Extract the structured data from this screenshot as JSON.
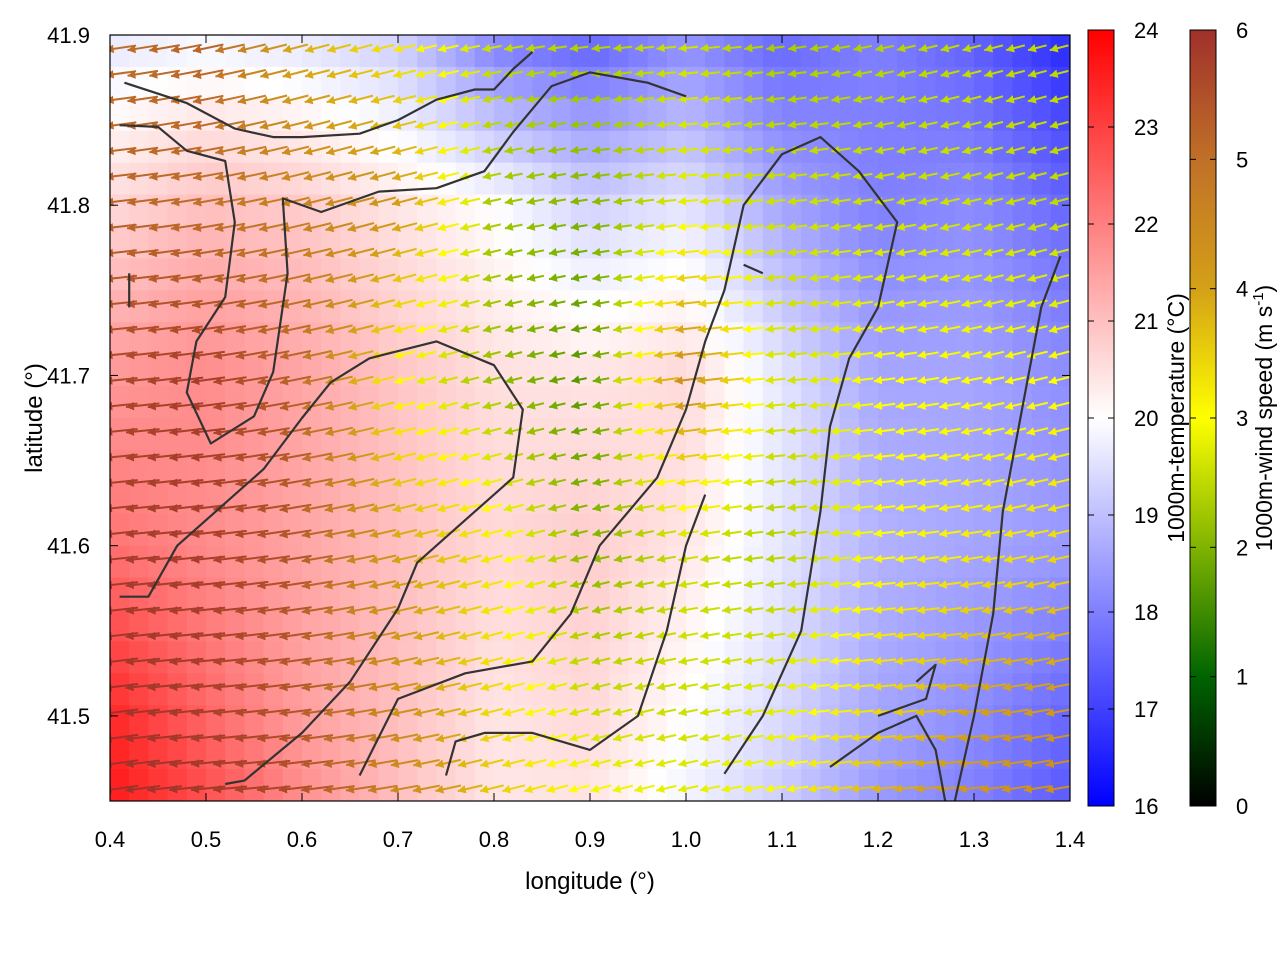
{
  "chart_data": {
    "type": "heatmap",
    "title": "",
    "xlabel": "longitude (°)",
    "ylabel": "latitude (°)",
    "xlim": [
      0.4,
      1.4
    ],
    "ylim": [
      41.45,
      41.9
    ],
    "x_ticks": [
      {
        "value": 0.4,
        "label": "0.4"
      },
      {
        "value": 0.5,
        "label": "0.5"
      },
      {
        "value": 0.6,
        "label": "0.6"
      },
      {
        "value": 0.7,
        "label": "0.7"
      },
      {
        "value": 0.8,
        "label": "0.8"
      },
      {
        "value": 0.9,
        "label": "0.9"
      },
      {
        "value": 1.0,
        "label": "1.0"
      },
      {
        "value": 1.1,
        "label": "1.1"
      },
      {
        "value": 1.2,
        "label": "1.2"
      },
      {
        "value": 1.3,
        "label": "1.3"
      },
      {
        "value": 1.4,
        "label": "1.4"
      }
    ],
    "y_ticks": [
      {
        "value": 41.5,
        "label": "41.5"
      },
      {
        "value": 41.6,
        "label": "41.6"
      },
      {
        "value": 41.7,
        "label": "41.7"
      },
      {
        "value": 41.8,
        "label": "41.8"
      },
      {
        "value": 41.9,
        "label": "41.9"
      }
    ],
    "temperature": {
      "label": "1000m-temperature (°C)",
      "range": [
        16,
        24
      ],
      "ticks": [
        {
          "value": 16,
          "label": "16"
        },
        {
          "value": 17,
          "label": "17"
        },
        {
          "value": 18,
          "label": "18"
        },
        {
          "value": 19,
          "label": "19"
        },
        {
          "value": 20,
          "label": "20"
        },
        {
          "value": 21,
          "label": "21"
        },
        {
          "value": 22,
          "label": "22"
        },
        {
          "value": 23,
          "label": "23"
        },
        {
          "value": 24,
          "label": "24"
        }
      ],
      "colormap": [
        "#0000ff",
        "#ffffff",
        "#ff0000"
      ],
      "field_lon": [
        0.4,
        0.5,
        0.6,
        0.7,
        0.8,
        0.9,
        1.0,
        1.1,
        1.2,
        1.3,
        1.4
      ],
      "field_lat": [
        41.9,
        41.8,
        41.7,
        41.6,
        41.5,
        41.45
      ],
      "field_values": [
        [
          19.6,
          19.8,
          19.6,
          19.2,
          18.0,
          17.5,
          18.2,
          17.6,
          18.0,
          17.5,
          16.6
        ],
        [
          20.6,
          21.0,
          20.8,
          20.4,
          20.0,
          19.3,
          19.6,
          18.6,
          18.0,
          18.2,
          17.6
        ],
        [
          21.6,
          21.8,
          21.4,
          20.9,
          20.5,
          20.4,
          20.6,
          19.6,
          18.6,
          18.6,
          18.2
        ],
        [
          22.2,
          21.8,
          21.4,
          21.0,
          20.6,
          20.8,
          20.4,
          19.6,
          18.8,
          18.6,
          18.4
        ],
        [
          23.4,
          22.4,
          21.5,
          21.0,
          20.4,
          20.6,
          20.0,
          19.4,
          18.6,
          18.2,
          17.6
        ],
        [
          23.6,
          22.8,
          21.8,
          21.0,
          20.4,
          20.4,
          19.8,
          19.2,
          18.4,
          18.0,
          17.4
        ]
      ]
    },
    "wind_speed": {
      "label": "1000m-wind speed (m s",
      "label_sup": "-1",
      "label_end": ")",
      "range": [
        0,
        6
      ],
      "ticks": [
        {
          "value": 0,
          "label": "0"
        },
        {
          "value": 1,
          "label": "1"
        },
        {
          "value": 2,
          "label": "2"
        },
        {
          "value": 3,
          "label": "3"
        },
        {
          "value": 4,
          "label": "4"
        },
        {
          "value": 5,
          "label": "5"
        },
        {
          "value": 6,
          "label": "6"
        }
      ],
      "colormap": [
        "#000000",
        "#006400",
        "#7fb300",
        "#ffff00",
        "#d4a017",
        "#c07028",
        "#a0302a"
      ],
      "field_values": [
        [
          5.0,
          5.2,
          3.8,
          3.2,
          2.6,
          2.4,
          2.6,
          2.3,
          2.4,
          2.5,
          2.5
        ],
        [
          5.2,
          5.0,
          4.6,
          4.2,
          2.3,
          2.0,
          2.8,
          2.6,
          2.6,
          2.6,
          2.5
        ],
        [
          5.6,
          5.8,
          5.2,
          3.0,
          2.2,
          1.6,
          4.4,
          2.6,
          3.0,
          3.0,
          3.0
        ],
        [
          5.8,
          5.8,
          5.4,
          4.0,
          3.2,
          2.0,
          2.6,
          2.4,
          3.0,
          3.2,
          3.4
        ],
        [
          6.0,
          5.8,
          5.4,
          4.4,
          3.4,
          2.6,
          2.6,
          2.8,
          3.4,
          4.0,
          4.2
        ],
        [
          6.0,
          5.9,
          5.6,
          4.6,
          3.6,
          3.0,
          2.8,
          3.0,
          3.8,
          4.2,
          4.4
        ]
      ],
      "direction": "arrows point west (easterly wind)"
    },
    "contours": [
      [
        [
          0.415,
          41.872
        ],
        [
          0.48,
          41.86
        ],
        [
          0.53,
          41.845
        ],
        [
          0.57,
          41.84
        ],
        [
          0.6,
          41.84
        ],
        [
          0.66,
          41.842
        ],
        [
          0.7,
          41.85
        ],
        [
          0.74,
          41.862
        ],
        [
          0.78,
          41.868
        ],
        [
          0.8,
          41.868
        ],
        [
          0.82,
          41.88
        ],
        [
          0.84,
          41.89
        ]
      ],
      [
        [
          0.41,
          41.847
        ],
        [
          0.45,
          41.846
        ],
        [
          0.48,
          41.832
        ],
        [
          0.52,
          41.826
        ],
        [
          0.53,
          41.79
        ],
        [
          0.52,
          41.746
        ],
        [
          0.49,
          41.72
        ],
        [
          0.48,
          41.69
        ],
        [
          0.505,
          41.66
        ],
        [
          0.55,
          41.676
        ],
        [
          0.57,
          41.702
        ],
        [
          0.585,
          41.76
        ],
        [
          0.58,
          41.804
        ],
        [
          0.62,
          41.796
        ],
        [
          0.68,
          41.808
        ],
        [
          0.74,
          41.81
        ],
        [
          0.79,
          41.82
        ],
        [
          0.82,
          41.843
        ],
        [
          0.86,
          41.87
        ],
        [
          0.9,
          41.878
        ],
        [
          0.96,
          41.872
        ],
        [
          1.0,
          41.864
        ]
      ],
      [
        [
          0.41,
          41.57
        ],
        [
          0.44,
          41.57
        ],
        [
          0.47,
          41.6
        ],
        [
          0.52,
          41.625
        ],
        [
          0.56,
          41.645
        ],
        [
          0.6,
          41.675
        ],
        [
          0.63,
          41.696
        ],
        [
          0.67,
          41.71
        ],
        [
          0.74,
          41.72
        ],
        [
          0.8,
          41.706
        ],
        [
          0.83,
          41.68
        ],
        [
          0.82,
          41.64
        ],
        [
          0.76,
          41.61
        ],
        [
          0.72,
          41.59
        ],
        [
          0.7,
          41.563
        ],
        [
          0.65,
          41.52
        ],
        [
          0.6,
          41.49
        ],
        [
          0.54,
          41.462
        ],
        [
          0.52,
          41.46
        ]
      ],
      [
        [
          0.66,
          41.465
        ],
        [
          0.7,
          41.51
        ],
        [
          0.77,
          41.525
        ],
        [
          0.84,
          41.532
        ],
        [
          0.88,
          41.56
        ],
        [
          0.91,
          41.6
        ],
        [
          0.97,
          41.64
        ],
        [
          1.0,
          41.68
        ],
        [
          1.02,
          41.72
        ],
        [
          1.04,
          41.75
        ],
        [
          1.06,
          41.8
        ],
        [
          1.1,
          41.83
        ],
        [
          1.14,
          41.84
        ],
        [
          1.18,
          41.82
        ],
        [
          1.22,
          41.79
        ],
        [
          1.2,
          41.74
        ],
        [
          1.17,
          41.71
        ],
        [
          1.15,
          41.67
        ],
        [
          1.14,
          41.62
        ],
        [
          1.12,
          41.55
        ],
        [
          1.08,
          41.5
        ],
        [
          1.04,
          41.466
        ]
      ],
      [
        [
          0.75,
          41.465
        ],
        [
          0.76,
          41.485
        ],
        [
          0.79,
          41.49
        ],
        [
          0.84,
          41.49
        ],
        [
          0.9,
          41.48
        ],
        [
          0.95,
          41.5
        ],
        [
          0.98,
          41.55
        ],
        [
          1.0,
          41.6
        ],
        [
          1.02,
          41.63
        ]
      ],
      [
        [
          1.28,
          41.45
        ],
        [
          1.3,
          41.5
        ],
        [
          1.32,
          41.56
        ],
        [
          1.33,
          41.62
        ],
        [
          1.35,
          41.68
        ],
        [
          1.37,
          41.74
        ],
        [
          1.39,
          41.77
        ]
      ],
      [
        [
          1.15,
          41.47
        ],
        [
          1.2,
          41.49
        ],
        [
          1.24,
          41.5
        ],
        [
          1.26,
          41.48
        ],
        [
          1.27,
          41.45
        ]
      ],
      [
        [
          1.2,
          41.5
        ],
        [
          1.25,
          41.51
        ],
        [
          1.26,
          41.53
        ],
        [
          1.24,
          41.52
        ]
      ],
      [
        [
          0.42,
          41.76
        ],
        [
          0.42,
          41.74
        ]
      ],
      [
        [
          1.06,
          41.765
        ],
        [
          1.08,
          41.76
        ]
      ]
    ]
  }
}
